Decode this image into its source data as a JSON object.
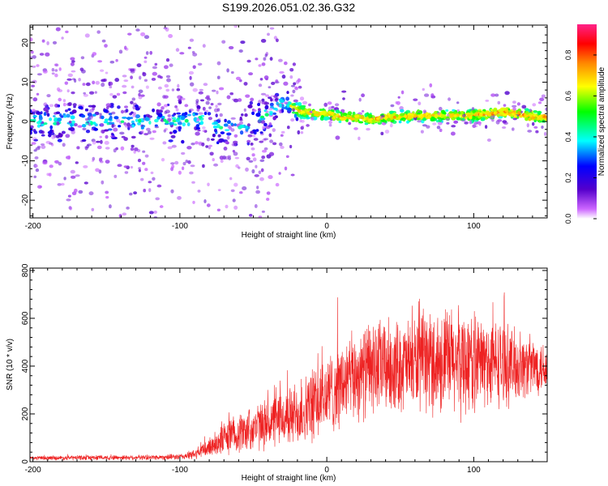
{
  "title": "S199.2026.051.02.36.G32",
  "chart_data": [
    {
      "type": "heatmap",
      "xlabel": "Height of straight line (km)",
      "ylabel": "Frequency (Hz)",
      "xlim": [
        -202,
        150
      ],
      "ylim": [
        -24.5,
        24.5
      ],
      "xticks": [
        -200,
        -100,
        0,
        100
      ],
      "yticks": [
        20,
        10,
        0,
        -10,
        -20
      ],
      "colorbar": {
        "label": "Normalized spectral amplitude",
        "range": [
          0,
          0.95
        ],
        "ticks": [
          0.0,
          0.2,
          0.4,
          0.6,
          0.8
        ],
        "colors": [
          "#ffffff",
          "#cc66ff",
          "#5500cc",
          "#0000ff",
          "#00ffff",
          "#00ff00",
          "#ffff00",
          "#ff8800",
          "#ff0000",
          "#ff2288"
        ]
      },
      "ridge": {
        "description": "peak frequency vs height",
        "x": [
          -200,
          -150,
          -100,
          -90,
          -80,
          -70,
          -60,
          -50,
          -40,
          -35,
          -30,
          -20,
          -10,
          0,
          10,
          20,
          30,
          40,
          60,
          80,
          100,
          120,
          135,
          150
        ],
        "y": [
          0,
          0,
          0,
          1,
          0,
          -2,
          -2,
          -0.5,
          2,
          4,
          5,
          3,
          2,
          2,
          1,
          1,
          0.5,
          1,
          1.5,
          1.5,
          1.5,
          2.5,
          1.5,
          1
        ]
      }
    },
    {
      "type": "line",
      "xlabel": "Height of straight line (km)",
      "ylabel": "SNR (10 * v/v)",
      "xlim": [
        -202,
        150
      ],
      "ylim": [
        0,
        810
      ],
      "xticks": [
        -200,
        -100,
        0,
        100
      ],
      "yticks": [
        0,
        200,
        400,
        600,
        800
      ],
      "color": "#ee2222",
      "envelope": {
        "x": [
          -202,
          -160,
          -120,
          -100,
          -90,
          -80,
          -70,
          -60,
          -50,
          -40,
          -30,
          -20,
          -10,
          0,
          10,
          20,
          30,
          40,
          50,
          60,
          70,
          80,
          90,
          100,
          110,
          120,
          130,
          140,
          150
        ],
        "mean": [
          15,
          17,
          18,
          20,
          30,
          60,
          100,
          120,
          140,
          160,
          180,
          200,
          230,
          280,
          320,
          360,
          390,
          400,
          400,
          410,
          420,
          420,
          420,
          420,
          415,
          410,
          400,
          400,
          400
        ],
        "spread": [
          8,
          10,
          10,
          12,
          20,
          40,
          70,
          80,
          90,
          100,
          110,
          130,
          150,
          160,
          170,
          180,
          190,
          190,
          180,
          190,
          200,
          220,
          220,
          200,
          180,
          170,
          140,
          120,
          100
        ]
      }
    }
  ]
}
